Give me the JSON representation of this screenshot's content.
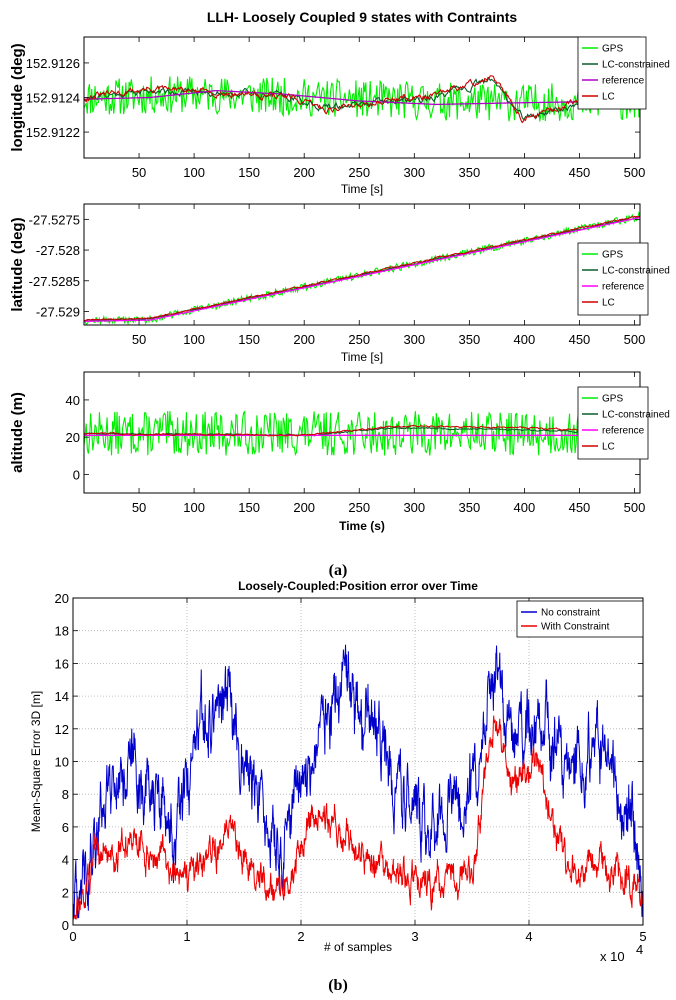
{
  "chart_data": [
    {
      "type": "line",
      "panel": "a-longitude",
      "title": "LLH- Loosely Coupled 9 states with Contraints",
      "xlabel": "Time [s]",
      "ylabel": "longitude (deg)",
      "xlim": [
        0,
        505
      ],
      "ylim": [
        152.91205,
        152.91275
      ],
      "xticks": [
        50,
        100,
        150,
        200,
        250,
        300,
        350,
        400,
        450,
        500
      ],
      "xtick_labels": [
        "50",
        "100",
        "150",
        "200",
        "250",
        "300",
        "350",
        "400",
        "450",
        "500"
      ],
      "yticks": [
        152.9122,
        152.9124,
        152.9126
      ],
      "ytick_labels": [
        "152.9122",
        "152.9124",
        "152.9126"
      ],
      "legend_position": "top-right",
      "series": [
        {
          "name": "GPS",
          "color": "#00ee00",
          "noise": 0.00011,
          "seed": 11,
          "x": [
            0,
            100,
            200,
            300,
            400,
            505
          ],
          "values": [
            152.9124,
            152.91242,
            152.9124,
            152.91238,
            152.91237,
            152.91238
          ]
        },
        {
          "name": "LC-constrained",
          "color": "#0b5a2a",
          "noise": 3e-05,
          "seed": 21,
          "x": [
            0,
            60,
            120,
            180,
            220,
            280,
            320,
            370,
            400,
            450,
            505
          ],
          "values": [
            152.9124,
            152.91244,
            152.91243,
            152.91242,
            152.91234,
            152.91238,
            152.9124,
            152.9125,
            152.91228,
            152.91237,
            152.91236
          ]
        },
        {
          "name": "reference",
          "color": "#b000c8",
          "noise": 0,
          "seed": 0,
          "x": [
            0,
            60,
            120,
            180,
            250,
            320,
            400,
            505
          ],
          "values": [
            152.91239,
            152.9124,
            152.91244,
            152.91242,
            152.91238,
            152.91236,
            152.91237,
            152.91238
          ]
        },
        {
          "name": "LC",
          "color": "#cc0000",
          "noise": 3e-05,
          "seed": 31,
          "x": [
            0,
            60,
            120,
            180,
            220,
            280,
            320,
            370,
            400,
            450,
            505
          ],
          "values": [
            152.9124,
            152.91245,
            152.91243,
            152.91241,
            152.91233,
            152.91239,
            152.91241,
            152.91252,
            152.91227,
            152.91238,
            152.91235
          ]
        }
      ]
    },
    {
      "type": "line",
      "panel": "a-latitude",
      "xlabel": "Time [s]",
      "ylabel": "latitude (deg)",
      "xlim": [
        0,
        505
      ],
      "ylim": [
        -27.52922,
        -27.52725
      ],
      "xticks": [
        50,
        100,
        150,
        200,
        250,
        300,
        350,
        400,
        450,
        500
      ],
      "xtick_labels": [
        "50",
        "100",
        "150",
        "200",
        "250",
        "300",
        "350",
        "400",
        "450",
        "500"
      ],
      "yticks": [
        -27.529,
        -27.5285,
        -27.528,
        -27.5275
      ],
      "ytick_labels": [
        "-27.529",
        "-27.5285",
        "-27.528",
        "-27.5275"
      ],
      "legend_position": "right",
      "series": [
        {
          "name": "GPS",
          "color": "#00ee00",
          "noise": 6e-05,
          "seed": 12,
          "x": [
            0,
            60,
            505
          ],
          "values": [
            -27.52915,
            -27.52913,
            -27.52745
          ]
        },
        {
          "name": "LC-constrained",
          "color": "#0b5a2a",
          "noise": 1.5e-05,
          "seed": 22,
          "x": [
            0,
            60,
            505
          ],
          "values": [
            -27.52915,
            -27.52912,
            -27.52746
          ]
        },
        {
          "name": "reference",
          "color": "#ff00ff",
          "noise": 0,
          "seed": 0,
          "x": [
            0,
            60,
            505
          ],
          "values": [
            -27.52916,
            -27.52914,
            -27.52747
          ]
        },
        {
          "name": "LC",
          "color": "#cc0000",
          "noise": 1.8e-05,
          "seed": 32,
          "x": [
            0,
            60,
            505
          ],
          "values": [
            -27.52914,
            -27.52911,
            -27.52744
          ]
        }
      ]
    },
    {
      "type": "line",
      "panel": "a-altitude",
      "xlabel": "Time (s)",
      "ylabel": "altitude (m)",
      "xlim": [
        0,
        505
      ],
      "ylim": [
        -10,
        55
      ],
      "xticks": [
        50,
        100,
        150,
        200,
        250,
        300,
        350,
        400,
        450,
        500
      ],
      "xtick_labels": [
        "50",
        "100",
        "150",
        "200",
        "250",
        "300",
        "350",
        "400",
        "450",
        "500"
      ],
      "yticks": [
        0,
        20,
        40
      ],
      "ytick_labels": [
        "0",
        "20",
        "40"
      ],
      "legend_position": "top-right",
      "series": [
        {
          "name": "GPS",
          "color": "#00ee00",
          "noise": 12,
          "seed": 13,
          "x": [
            0,
            505
          ],
          "values": [
            22,
            22
          ]
        },
        {
          "name": "LC-constrained",
          "color": "#0b5a2a",
          "noise": 0.6,
          "seed": 23,
          "x": [
            0,
            200,
            280,
            400,
            505
          ],
          "values": [
            22,
            21,
            25,
            24,
            22
          ]
        },
        {
          "name": "reference",
          "color": "#ff00ff",
          "noise": 0,
          "seed": 0,
          "x": [
            0,
            505
          ],
          "values": [
            21,
            21
          ]
        },
        {
          "name": "LC",
          "color": "#cc0000",
          "noise": 0.7,
          "seed": 33,
          "x": [
            0,
            200,
            280,
            400,
            505
          ],
          "values": [
            22,
            21,
            26,
            25,
            22
          ]
        }
      ]
    },
    {
      "type": "line",
      "panel": "b",
      "title": "Loosely-Coupled:Position error over Time",
      "xlabel": "# of samples",
      "ylabel": "Mean-Square Error 3D [m]",
      "x_exponent": "x 10",
      "x_exponent_power": "4",
      "xlim": [
        0,
        5
      ],
      "ylim": [
        0,
        20
      ],
      "grid": true,
      "xticks": [
        0,
        1,
        2,
        3,
        4,
        5
      ],
      "xtick_labels": [
        "0",
        "1",
        "2",
        "3",
        "4",
        "5"
      ],
      "yticks": [
        0,
        2,
        4,
        6,
        8,
        10,
        12,
        14,
        16,
        18,
        20
      ],
      "ytick_labels": [
        "0",
        "2",
        "4",
        "6",
        "8",
        "10",
        "12",
        "14",
        "16",
        "18",
        "20"
      ],
      "legend_position": "top-right",
      "series": [
        {
          "name": "No constraint",
          "color": "#0000cc",
          "noise": 2.2,
          "seed": 41,
          "x": [
            0,
            0.1,
            0.2,
            0.3,
            0.5,
            0.7,
            0.9,
            1.1,
            1.3,
            1.4,
            1.6,
            1.8,
            2.0,
            2.3,
            2.6,
            2.9,
            3.1,
            3.3,
            3.5,
            3.7,
            3.9,
            4.05,
            4.3,
            4.6,
            4.9,
            5.0
          ],
          "values": [
            0.5,
            3,
            6,
            9,
            10,
            8,
            5,
            11,
            14,
            13,
            8,
            4,
            9,
            14,
            12,
            8,
            6,
            7,
            9,
            14,
            11,
            13,
            9,
            11,
            7,
            3
          ]
        },
        {
          "name": "With Constraint",
          "color": "#ee0000",
          "noise": 1.1,
          "seed": 51,
          "x": [
            0,
            0.1,
            0.2,
            0.5,
            0.8,
            1.0,
            1.2,
            1.4,
            1.6,
            1.9,
            2.1,
            2.3,
            2.6,
            2.9,
            3.2,
            3.5,
            3.7,
            3.85,
            4.05,
            4.3,
            4.6,
            4.9,
            5.0
          ],
          "values": [
            0.3,
            2,
            4,
            5,
            4,
            2.5,
            4,
            6,
            3,
            2.5,
            7,
            6,
            4,
            2.5,
            2.5,
            3,
            13,
            8,
            10,
            4,
            3.5,
            3,
            1.5
          ]
        }
      ]
    }
  ],
  "captions": {
    "a": "(a)",
    "b": "(b)"
  }
}
